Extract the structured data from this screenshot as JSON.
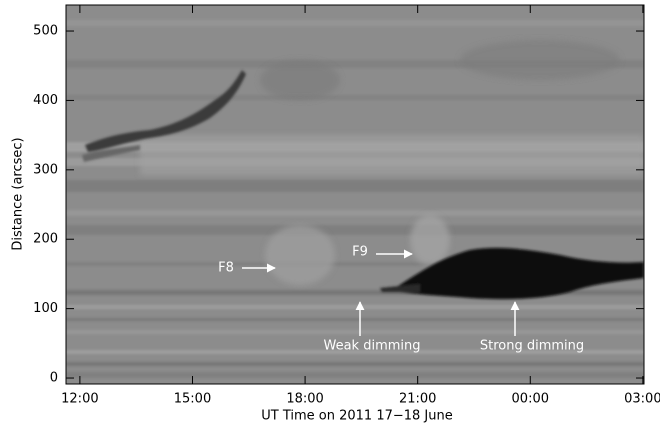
{
  "chart_data": {
    "type": "image",
    "xlabel": "UT Time on 2011 17−18 June",
    "ylabel": "Distance (arcsec)",
    "xlim": [
      11.63,
      27.03
    ],
    "ylim": [
      -8.6,
      537.5
    ],
    "xticks": [
      {
        "value": 12,
        "label": "12:00"
      },
      {
        "value": 15,
        "label": "15:00"
      },
      {
        "value": 18,
        "label": "18:00"
      },
      {
        "value": 21,
        "label": "21:00"
      },
      {
        "value": 24,
        "label": "00:00"
      },
      {
        "value": 27,
        "label": "03:00"
      }
    ],
    "yticks": [
      0,
      100,
      200,
      300,
      400,
      500
    ],
    "annotations": [
      "F8",
      "F9",
      "Weak dimming",
      "Strong dimming"
    ]
  }
}
